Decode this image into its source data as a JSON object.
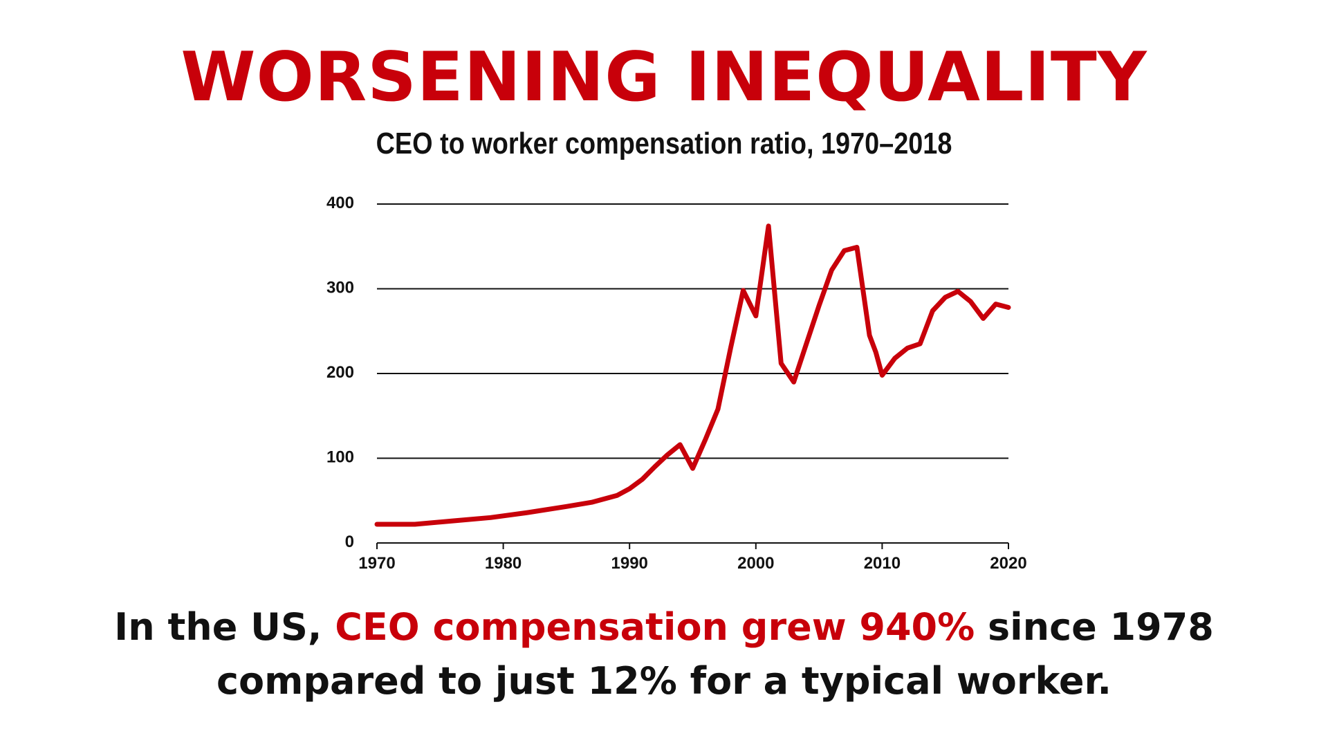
{
  "headline": "WORSENING INEQUALITY",
  "colors": {
    "accent": "#c8000a",
    "text": "#111111",
    "grid": "#111111",
    "background": "#ffffff"
  },
  "chart_data": {
    "type": "line",
    "title": "CEO to worker compensation ratio, 1970–2018",
    "xlabel": "",
    "ylabel": "",
    "xlim": [
      1970,
      2020
    ],
    "ylim": [
      0,
      400
    ],
    "xticks": [
      1970,
      1980,
      1990,
      2000,
      2010,
      2020
    ],
    "yticks": [
      0,
      100,
      200,
      300,
      400
    ],
    "grid": "horizontal",
    "legend": "none",
    "series": [
      {
        "color": "#c8000a",
        "points": [
          [
            1970,
            22
          ],
          [
            1973,
            22
          ],
          [
            1976,
            26
          ],
          [
            1979,
            30
          ],
          [
            1982,
            36
          ],
          [
            1985,
            43
          ],
          [
            1987,
            48
          ],
          [
            1989,
            56
          ],
          [
            1990,
            64
          ],
          [
            1991,
            75
          ],
          [
            1992,
            90
          ],
          [
            1993,
            104
          ],
          [
            1994,
            116
          ],
          [
            1995,
            88
          ],
          [
            1996,
            122
          ],
          [
            1997,
            158
          ],
          [
            1998,
            230
          ],
          [
            1999,
            298
          ],
          [
            2000,
            268
          ],
          [
            2001,
            374
          ],
          [
            2002,
            212
          ],
          [
            2003,
            190
          ],
          [
            2004,
            235
          ],
          [
            2005,
            280
          ],
          [
            2006,
            322
          ],
          [
            2007,
            345
          ],
          [
            2008,
            349
          ],
          [
            2009,
            245
          ],
          [
            2009.5,
            225
          ],
          [
            2010,
            198
          ],
          [
            2011,
            218
          ],
          [
            2012,
            230
          ],
          [
            2013,
            235
          ],
          [
            2014,
            274
          ],
          [
            2015,
            290
          ],
          [
            2016,
            297
          ],
          [
            2017,
            285
          ],
          [
            2018,
            265
          ],
          [
            2019,
            282
          ],
          [
            2020,
            278
          ]
        ]
      }
    ]
  },
  "caption": {
    "line1_prefix": "In the US, ",
    "line1_highlight": "CEO compensation grew 940%",
    "line1_suffix": " since 1978",
    "line2": "compared to just 12% for a typical worker."
  }
}
